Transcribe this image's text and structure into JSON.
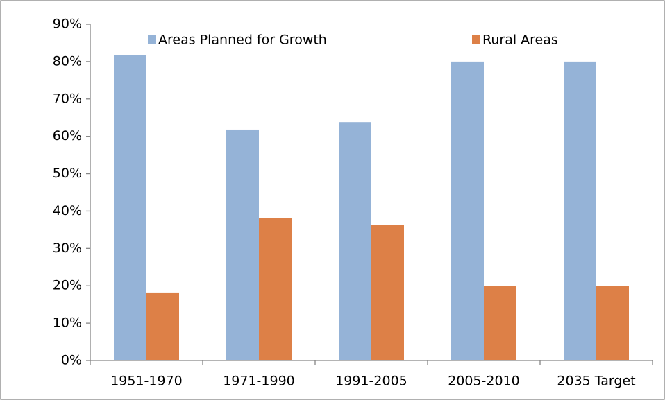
{
  "chart_data": {
    "type": "bar",
    "categories": [
      "1951-1970",
      "1971-1990",
      "1991-2005",
      "2005-2010",
      "2035 Target"
    ],
    "series": [
      {
        "name": "Areas Planned for Growth",
        "color": "#95b3d7",
        "values": [
          81.8,
          61.8,
          63.8,
          80,
          80
        ]
      },
      {
        "name": "Rural Areas",
        "color": "#dd8047",
        "values": [
          18.2,
          38.2,
          36.2,
          20,
          20
        ]
      }
    ],
    "ylim": [
      0,
      90
    ],
    "yticks": [
      {
        "value": 0,
        "label": "0%"
      },
      {
        "value": 10,
        "label": "10%"
      },
      {
        "value": 20,
        "label": "20%"
      },
      {
        "value": 30,
        "label": "30%"
      },
      {
        "value": 40,
        "label": "40%"
      },
      {
        "value": 50,
        "label": "50%"
      },
      {
        "value": 60,
        "label": "60%"
      },
      {
        "value": 70,
        "label": "70%"
      },
      {
        "value": 80,
        "label": "80%"
      },
      {
        "value": 90,
        "label": "90%"
      }
    ],
    "legend": "top",
    "grid": false
  }
}
